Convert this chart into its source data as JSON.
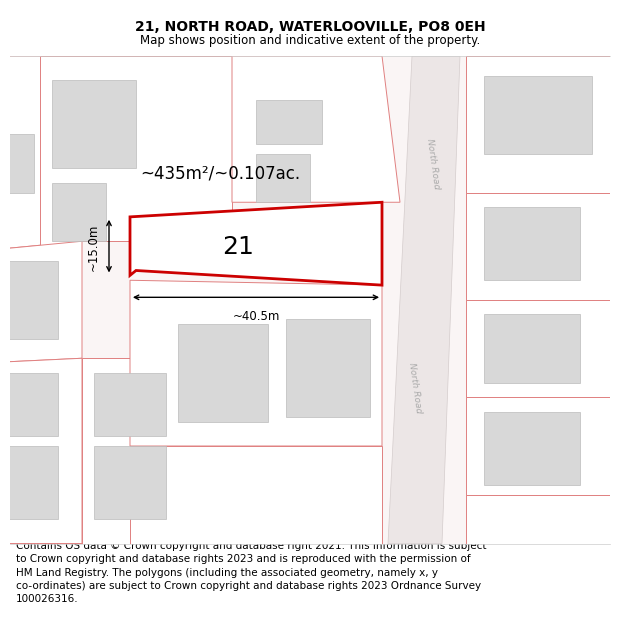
{
  "title": "21, NORTH ROAD, WATERLOOVILLE, PO8 0EH",
  "subtitle": "Map shows position and indicative extent of the property.",
  "footer_line1": "Contains OS data © Crown copyright and database right 2021. This information is subject",
  "footer_line2": "to Crown copyright and database rights 2023 and is reproduced with the permission of",
  "footer_line3": "HM Land Registry. The polygons (including the associated geometry, namely x, y",
  "footer_line4": "co-ordinates) are subject to Crown copyright and database rights 2023 Ordnance Survey",
  "footer_line5": "100026316.",
  "area_text": "~435m²/~0.107ac.",
  "width_text": "~40.5m",
  "height_text": "~15.0m",
  "plot_number": "21",
  "map_bg": "#ffffff",
  "parcel_line_color": "#e08080",
  "highlight_color": "#cc0000",
  "building_fill": "#d8d8d8",
  "building_edge": "#bbbbbb",
  "road_fill": "#e8e2e2",
  "road_label_color": "#aaaaaa",
  "road_label": "North Road",
  "title_fontsize": 10,
  "subtitle_fontsize": 8.5,
  "footer_fontsize": 7.5,
  "area_fontsize": 12,
  "dim_fontsize": 8.5,
  "plot_num_fontsize": 18
}
